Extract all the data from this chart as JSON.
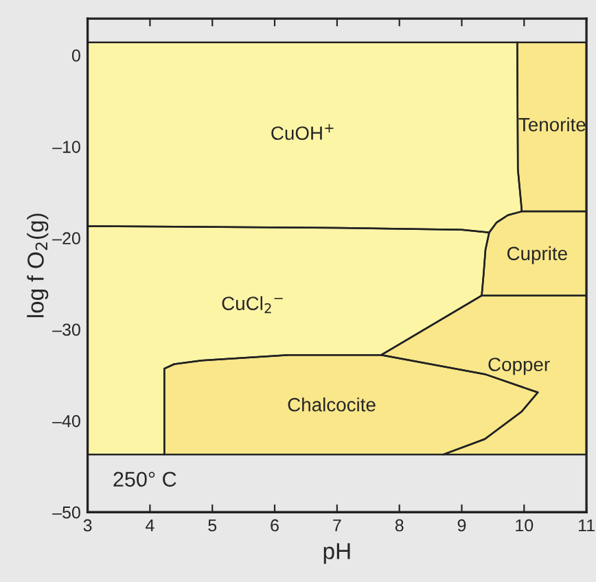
{
  "chart_data": {
    "type": "area",
    "xlabel": "pH",
    "ylabel": "log f O$_{2}$(g)",
    "xlim": [
      3,
      11
    ],
    "ylim": [
      -50,
      4
    ],
    "xticks": [
      3,
      4,
      5,
      6,
      7,
      8,
      9,
      10,
      11
    ],
    "yticks": [
      {
        "value": -50,
        "label": "–50"
      },
      {
        "value": -40,
        "label": "–40"
      },
      {
        "value": -30,
        "label": "–30"
      },
      {
        "value": -20,
        "label": "–20"
      },
      {
        "value": -10,
        "label": "–10"
      },
      0
    ],
    "grid": false,
    "legend": false,
    "series": [
      {
        "name": "CuOH$^{+}$",
        "color": "#fdf5a6",
        "x": [
          3,
          9.89,
          9.9,
          9.96,
          9.96,
          9.74,
          9.56,
          9.44,
          9.0,
          7.0,
          3
        ],
        "values": [
          1.4,
          1.4,
          -12.5,
          -16.8,
          -17.1,
          -17.5,
          -18.3,
          -19.4,
          -19.1,
          -18.9,
          -18.7
        ]
      },
      {
        "name": "CuCl$_{2}$$^{−}$",
        "color": "#fdf5a6",
        "x": [
          3,
          7.0,
          9.0,
          9.44,
          9.38,
          9.35,
          9.32,
          7.71,
          6.22,
          4.83,
          4.39,
          4.23,
          4.23,
          3
        ],
        "values": [
          -18.7,
          -18.9,
          -19.1,
          -19.4,
          -21.3,
          -24.0,
          -26.3,
          -32.8,
          -32.8,
          -33.4,
          -33.8,
          -34.3,
          -43.7,
          -43.7
        ]
      },
      {
        "name": "Tenorite",
        "color": "#f9e78a",
        "x": [
          9.89,
          11,
          11,
          9.96,
          9.96,
          9.9
        ],
        "values": [
          1.4,
          1.4,
          -17.1,
          -17.1,
          -16.8,
          -12.5
        ]
      },
      {
        "name": "Cuprite",
        "color": "#f9e78a",
        "x": [
          9.96,
          11,
          11,
          9.32,
          9.35,
          9.38,
          9.44,
          9.56,
          9.74
        ],
        "values": [
          -17.1,
          -17.1,
          -26.3,
          -26.3,
          -24.0,
          -21.3,
          -19.4,
          -18.3,
          -17.5
        ]
      },
      {
        "name": "Copper",
        "color": "#f9e78a",
        "x": [
          9.32,
          11,
          11,
          8.7,
          9.37,
          9.96,
          10.22,
          9.37,
          7.71
        ],
        "values": [
          -26.3,
          -26.3,
          -43.7,
          -43.7,
          -42.0,
          -39.0,
          -36.9,
          -34.9,
          -32.8
        ]
      },
      {
        "name": "Chalcocite",
        "color": "#f9e78a",
        "x": [
          4.23,
          4.23,
          4.39,
          4.83,
          6.22,
          7.71,
          9.37,
          10.22,
          9.96,
          9.37,
          8.7
        ],
        "values": [
          -43.7,
          -34.3,
          -33.8,
          -33.4,
          -32.8,
          -32.8,
          -34.9,
          -36.9,
          -39.0,
          -42.0,
          -43.7
        ]
      }
    ],
    "annotations": [
      "250° C"
    ]
  }
}
